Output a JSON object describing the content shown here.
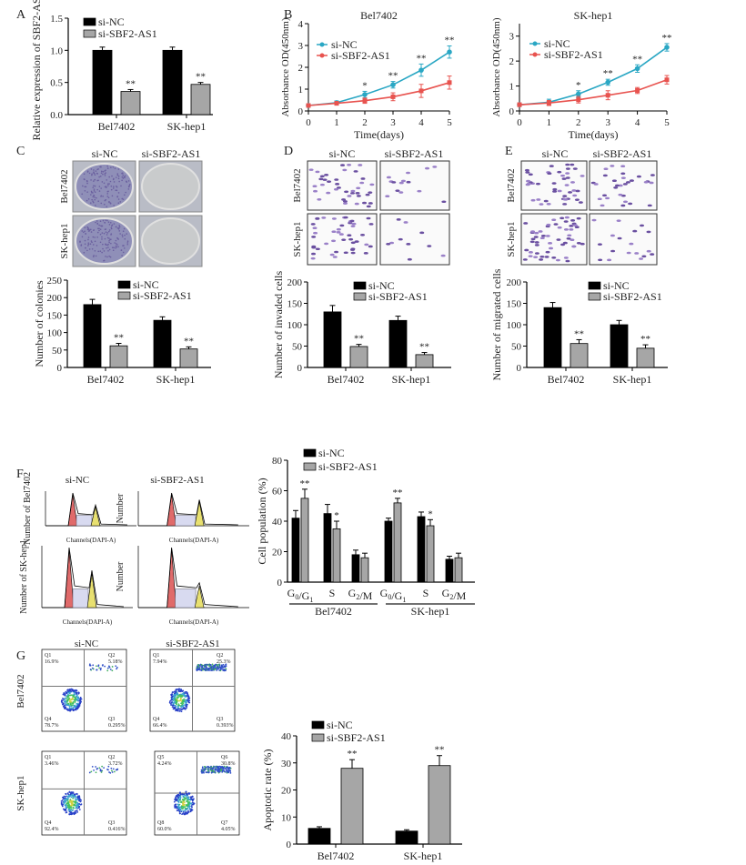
{
  "panels": {
    "A": "A",
    "B": "B",
    "C": "C",
    "D": "D",
    "E": "E",
    "F": "F",
    "G": "G"
  },
  "groups": {
    "nc": "si-NC",
    "si": "si-SBF2-AS1"
  },
  "rows": {
    "bel": "Bel7402",
    "sk": "SK-hep1"
  },
  "colors": {
    "nc_bar": "#000000",
    "si_bar": "#a6a6a6",
    "nc_line": "#2aa7c4",
    "si_line": "#e8534f"
  },
  "flow": {
    "ylabel_bel": "Number of Bel7402",
    "ylabel_sk": "Number of SK-hep1",
    "ylabel_short": "Number",
    "xlabel": "Channels(DAPI-A)"
  },
  "apoptosis_quadrants": [
    {
      "labels": [
        "Q1",
        "Q2",
        "Q3",
        "Q4"
      ],
      "values": [
        "16.9%",
        "5.18%",
        "0.295%",
        "78.7%"
      ]
    },
    {
      "labels": [
        "Q1",
        "Q2",
        "Q3",
        "Q4"
      ],
      "values": [
        "7.94%",
        "25.3%",
        "0.393%",
        "66.4%"
      ]
    },
    {
      "labels": [
        "Q1",
        "Q2",
        "Q3",
        "Q4"
      ],
      "values": [
        "3.46%",
        "3.72%",
        "0.416%",
        "92.4%"
      ]
    },
    {
      "labels": [
        "Q5",
        "Q6",
        "Q7",
        "Q8"
      ],
      "values": [
        "4.24%",
        "30.8%",
        "4.05%",
        "60.0%"
      ]
    }
  ],
  "chart_data": [
    {
      "type": "bar",
      "panel": "A",
      "ylabel": "Relative expression of SBF2-AS1",
      "ylim": [
        0,
        1.5
      ],
      "ticks": [
        "0.0",
        "0.5",
        "1.0",
        "1.5"
      ],
      "tickvals": [
        0,
        0.5,
        1,
        1.5
      ],
      "categories": [
        "Bel7402",
        "SK-hep1"
      ],
      "series": [
        {
          "name": "si-NC",
          "values": [
            1.0,
            1.0
          ],
          "errors": [
            0.05,
            0.05
          ],
          "sig": [
            "",
            ""
          ]
        },
        {
          "name": "si-SBF2-AS1",
          "values": [
            0.36,
            0.47
          ],
          "errors": [
            0.03,
            0.03
          ],
          "sig": [
            "**",
            "**"
          ]
        }
      ]
    },
    {
      "type": "line",
      "panel": "B",
      "title": "Bel7402",
      "xlabel": "Time(days)",
      "ylabel": "Absorbance OD(450nm)",
      "ylim": [
        0,
        4
      ],
      "yticks": [
        0,
        1,
        2,
        3,
        4
      ],
      "x": [
        0,
        1,
        2,
        3,
        4,
        5
      ],
      "series": [
        {
          "name": "si-NC",
          "values": [
            0.25,
            0.38,
            0.75,
            1.2,
            1.87,
            2.7
          ],
          "errors": [
            0.05,
            0.08,
            0.15,
            0.15,
            0.28,
            0.28
          ]
        },
        {
          "name": "si-SBF2-AS1",
          "values": [
            0.25,
            0.35,
            0.47,
            0.65,
            0.92,
            1.3
          ],
          "errors": [
            0.05,
            0.08,
            0.12,
            0.18,
            0.3,
            0.3
          ]
        }
      ],
      "sig": [
        "",
        "",
        "*",
        "**",
        "**",
        "**"
      ]
    },
    {
      "type": "line",
      "panel": "B",
      "title": "SK-hep1",
      "xlabel": "Time(days)",
      "ylabel": "Absorbance OD(450nm)",
      "ylim": [
        0,
        3.5
      ],
      "yticks": [
        0,
        1,
        2,
        3
      ],
      "x": [
        0,
        1,
        2,
        3,
        4,
        5
      ],
      "series": [
        {
          "name": "si-NC",
          "values": [
            0.25,
            0.35,
            0.68,
            1.15,
            1.7,
            2.55
          ],
          "errors": [
            0.07,
            0.12,
            0.13,
            0.12,
            0.15,
            0.15
          ]
        },
        {
          "name": "si-SBF2-AS1",
          "values": [
            0.25,
            0.32,
            0.45,
            0.63,
            0.82,
            1.25
          ],
          "errors": [
            0.07,
            0.1,
            0.13,
            0.18,
            0.12,
            0.17
          ]
        }
      ],
      "sig": [
        "",
        "",
        "*",
        "**",
        "**",
        "**"
      ]
    },
    {
      "type": "bar",
      "panel": "C",
      "ylabel": "Number of colonies",
      "ylim": [
        0,
        250
      ],
      "ticks": [
        "0",
        "50",
        "100",
        "150",
        "200",
        "250"
      ],
      "tickvals": [
        0,
        50,
        100,
        150,
        200,
        250
      ],
      "categories": [
        "Bel7402",
        "SK-hep1"
      ],
      "series": [
        {
          "name": "si-NC",
          "values": [
            180,
            135
          ],
          "errors": [
            15,
            10
          ],
          "sig": [
            "",
            ""
          ]
        },
        {
          "name": "si-SBF2-AS1",
          "values": [
            62,
            53
          ],
          "errors": [
            7,
            6
          ],
          "sig": [
            "**",
            "**"
          ]
        }
      ]
    },
    {
      "type": "bar",
      "panel": "D",
      "ylabel": "Number of invaded cells",
      "ylim": [
        0,
        200
      ],
      "ticks": [
        "0",
        "50",
        "100",
        "150",
        "200"
      ],
      "tickvals": [
        0,
        50,
        100,
        150,
        200
      ],
      "categories": [
        "Bel7402",
        "SK-hep1"
      ],
      "series": [
        {
          "name": "si-NC",
          "values": [
            130,
            110
          ],
          "errors": [
            15,
            10
          ],
          "sig": [
            "",
            ""
          ]
        },
        {
          "name": "si-SBF2-AS1",
          "values": [
            49,
            30
          ],
          "errors": [
            5,
            5
          ],
          "sig": [
            "**",
            "**"
          ]
        }
      ]
    },
    {
      "type": "bar",
      "panel": "E",
      "ylabel": "Number of migrated cells",
      "ylim": [
        0,
        200
      ],
      "ticks": [
        "0",
        "50",
        "100",
        "150",
        "200"
      ],
      "tickvals": [
        0,
        50,
        100,
        150,
        200
      ],
      "categories": [
        "Bel7402",
        "SK-hep1"
      ],
      "series": [
        {
          "name": "si-NC",
          "values": [
            140,
            100
          ],
          "errors": [
            12,
            10
          ],
          "sig": [
            "",
            ""
          ]
        },
        {
          "name": "si-SBF2-AS1",
          "values": [
            56,
            45
          ],
          "errors": [
            9,
            8
          ],
          "sig": [
            "**",
            "**"
          ]
        }
      ]
    },
    {
      "type": "bar",
      "panel": "F",
      "ylabel": "Cell population (%)",
      "ylim": [
        0,
        80
      ],
      "ticks": [
        "0",
        "20",
        "40",
        "60",
        "80"
      ],
      "tickvals": [
        0,
        20,
        40,
        60,
        80
      ],
      "categories": [
        "G0/G1",
        "S",
        "G2/M",
        "G0/G1",
        "S",
        "G2/M"
      ],
      "category_groups": [
        "Bel7402",
        "SK-hep1"
      ],
      "series": [
        {
          "name": "si-NC",
          "values": [
            42,
            45,
            18,
            40,
            43,
            15
          ],
          "errors": [
            5,
            6,
            3,
            2,
            3,
            2
          ],
          "sig": [
            "",
            "",
            "",
            "",
            "",
            ""
          ]
        },
        {
          "name": "si-SBF2-AS1",
          "values": [
            55,
            35,
            16,
            52,
            37,
            16
          ],
          "errors": [
            6,
            5,
            3,
            3,
            4,
            3
          ],
          "sig": [
            "**",
            "*",
            "",
            "**",
            "*",
            ""
          ]
        }
      ]
    },
    {
      "type": "bar",
      "panel": "G",
      "ylabel": "Apoptotic rate (%)",
      "ylim": [
        0,
        40
      ],
      "ticks": [
        "0",
        "10",
        "20",
        "30",
        "40"
      ],
      "tickvals": [
        0,
        10,
        20,
        30,
        40
      ],
      "categories": [
        "Bel7402",
        "SK-hep1"
      ],
      "series": [
        {
          "name": "si-NC",
          "values": [
            5.8,
            4.8
          ],
          "errors": [
            0.6,
            0.5
          ],
          "sig": [
            "",
            ""
          ]
        },
        {
          "name": "si-SBF2-AS1",
          "values": [
            28,
            29
          ],
          "errors": [
            3.2,
            3.7
          ],
          "sig": [
            "**",
            "**"
          ]
        }
      ]
    }
  ]
}
